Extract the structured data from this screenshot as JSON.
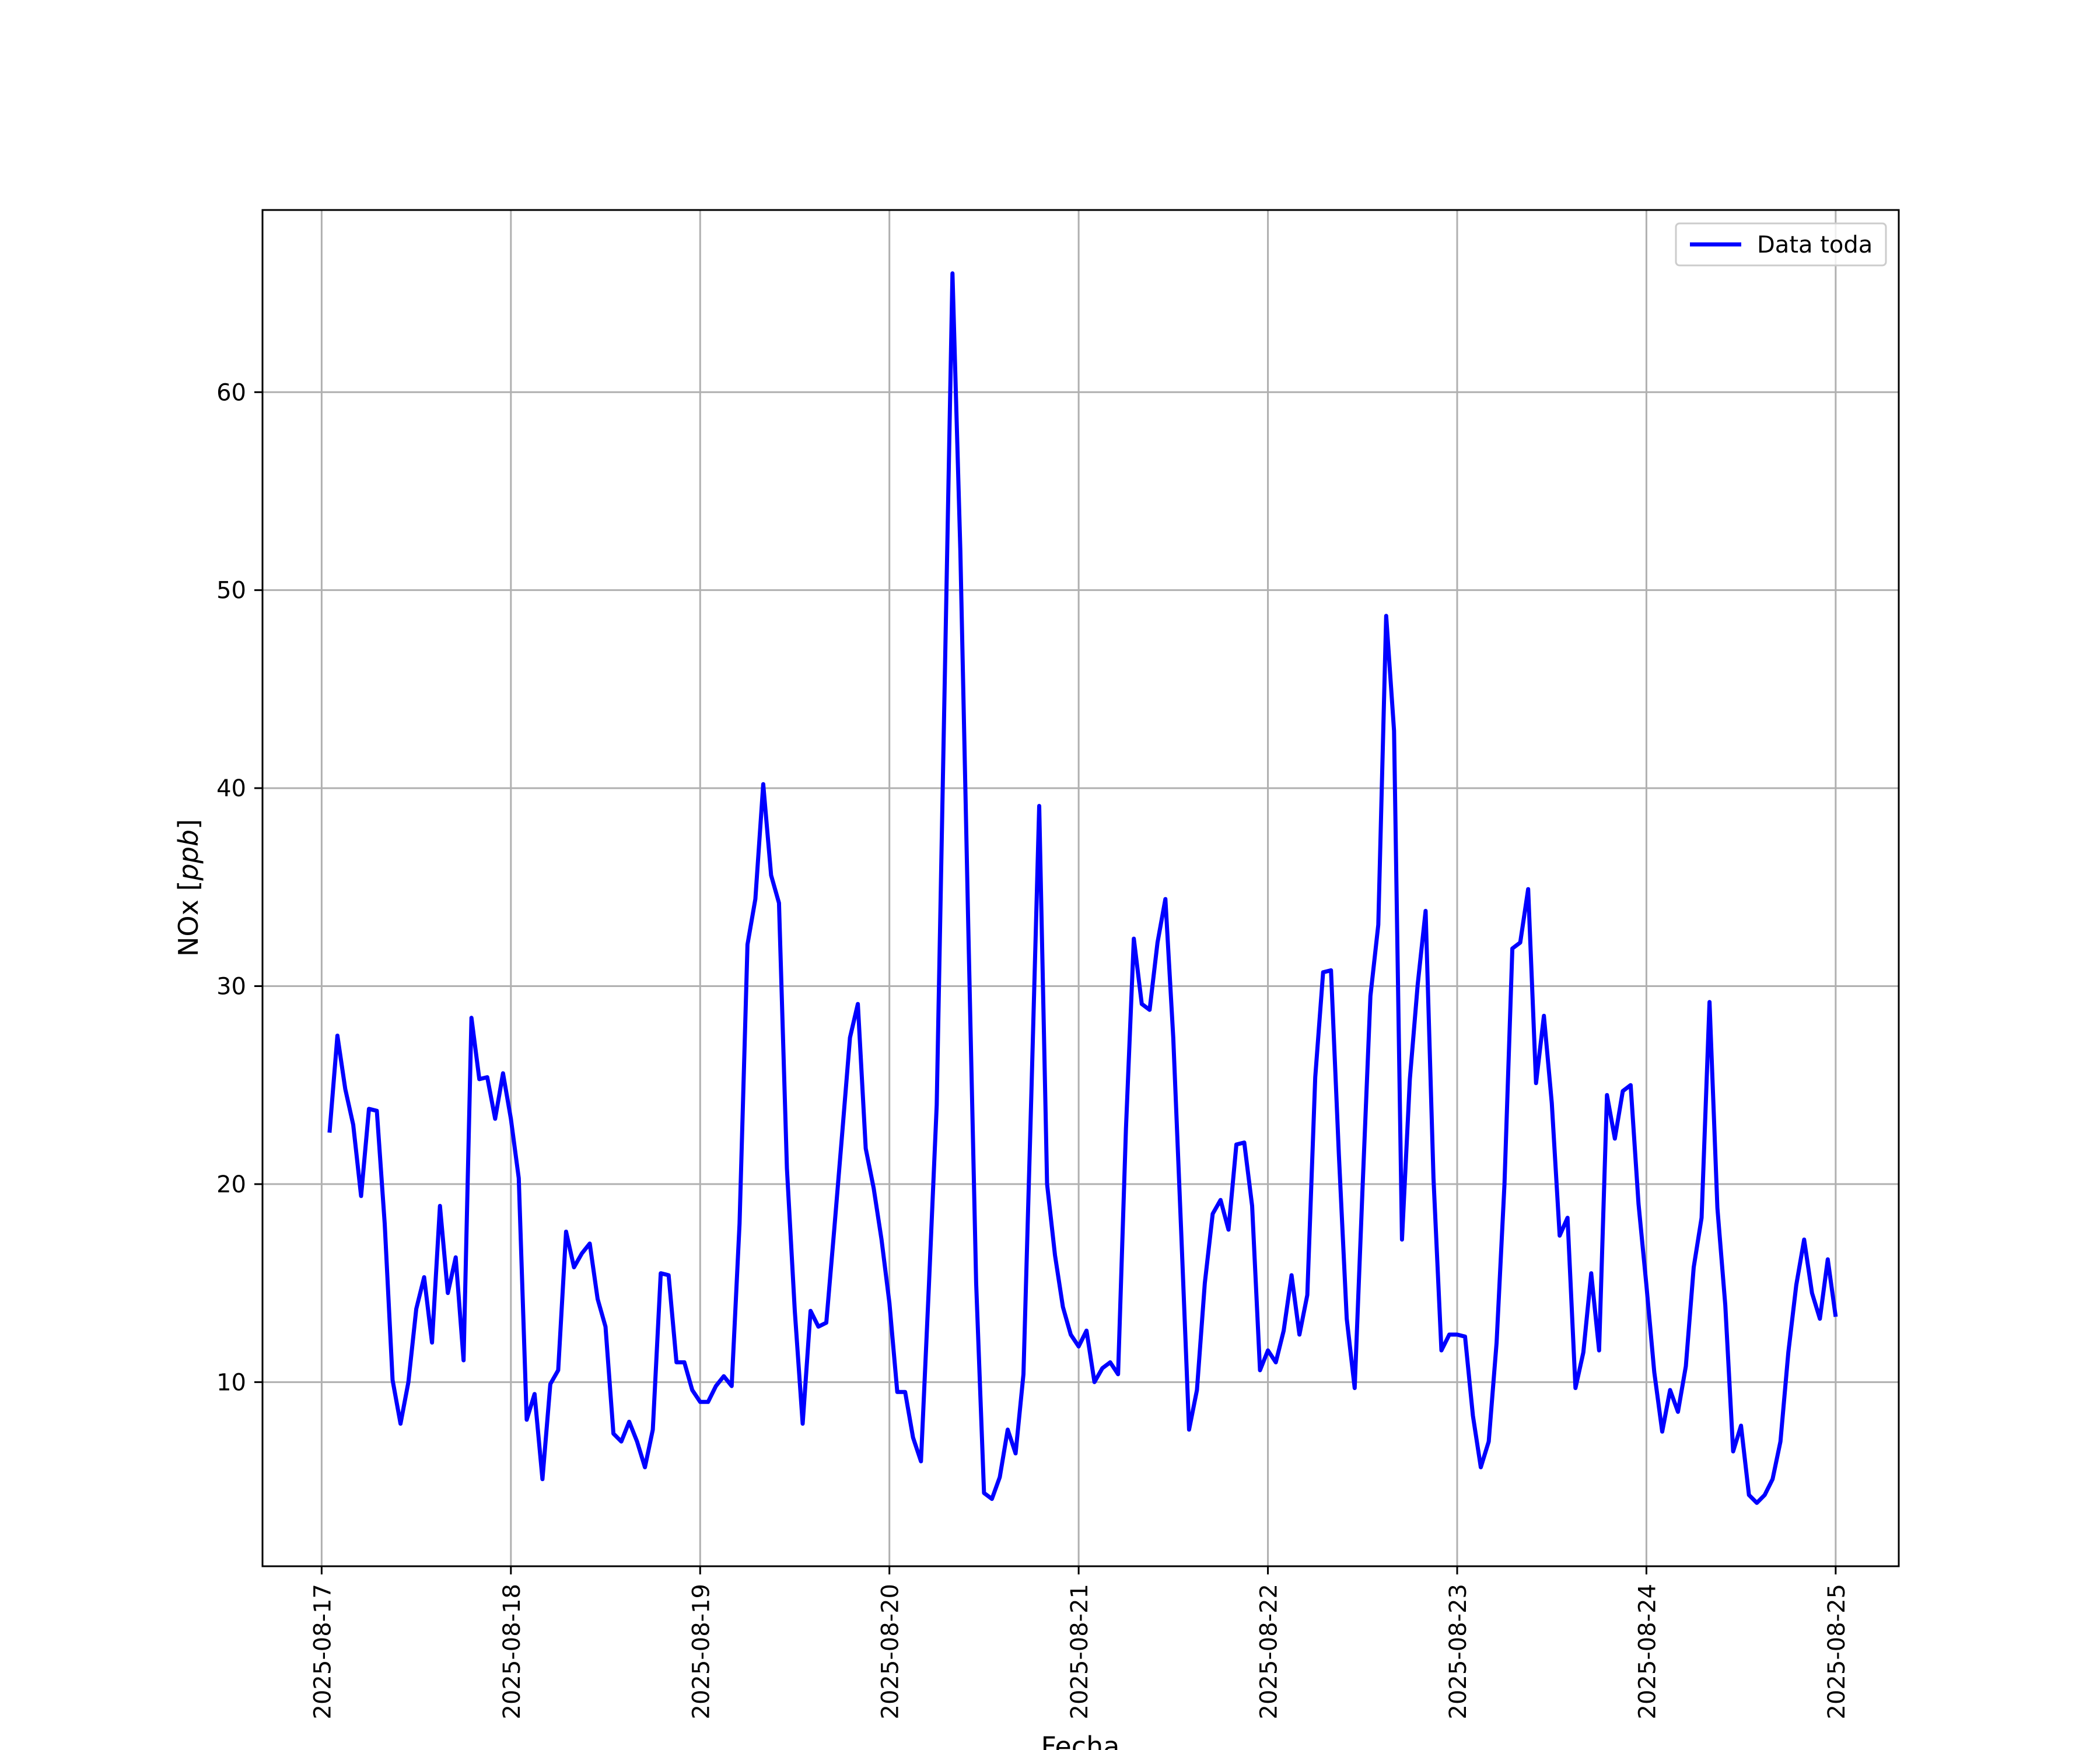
{
  "chart_data": {
    "type": "line",
    "title": "",
    "xlabel": "Fecha",
    "ylabel_main": "NOx [",
    "ylabel_unit": "ppb",
    "ylabel_close": "]",
    "xlim": [
      "2025-08-16 16:30",
      "2025-08-25 08:00"
    ],
    "ylim": [
      0.7,
      69.2
    ],
    "x_ticks": [
      "2025-08-17",
      "2025-08-18",
      "2025-08-19",
      "2025-08-20",
      "2025-08-21",
      "2025-08-22",
      "2025-08-23",
      "2025-08-24",
      "2025-08-25"
    ],
    "y_ticks": [
      10,
      20,
      30,
      40,
      50,
      60
    ],
    "grid": true,
    "legend_position": "top-right",
    "sampling_interval_hours": 1,
    "series": [
      {
        "name": "Data toda",
        "color": "#0000ff",
        "x_start": "2025-08-17 01:00",
        "x_end": "2025-08-25 00:00",
        "values": [
          22.6,
          27.5,
          24.8,
          23.0,
          19.4,
          23.8,
          23.7,
          18.0,
          10.1,
          7.9,
          10.0,
          13.7,
          15.3,
          12.0,
          18.9,
          14.5,
          16.3,
          11.1,
          28.4,
          25.3,
          25.4,
          23.3,
          25.6,
          23.3,
          20.3,
          8.1,
          9.4,
          5.1,
          9.9,
          10.6,
          17.6,
          15.8,
          16.5,
          17.0,
          14.2,
          12.8,
          7.4,
          7.0,
          8.0,
          7.0,
          5.7,
          7.6,
          15.5,
          15.4,
          11.0,
          11.0,
          9.6,
          9.0,
          9.0,
          9.8,
          10.3,
          9.8,
          18.0,
          32.1,
          34.4,
          40.2,
          35.6,
          34.2,
          20.8,
          13.6,
          7.9,
          13.6,
          12.8,
          13.0,
          17.7,
          22.5,
          27.4,
          29.1,
          21.8,
          19.8,
          17.2,
          14.0,
          9.5,
          9.5,
          7.2,
          6.0,
          14.8,
          24.0,
          45.0,
          66.0,
          52.0,
          33.0,
          15.0,
          4.4,
          4.1,
          5.2,
          7.6,
          6.4,
          10.4,
          24.5,
          39.1,
          20.0,
          16.4,
          13.8,
          12.4,
          11.8,
          12.6,
          10.0,
          10.7,
          11.0,
          10.4,
          22.8,
          32.4,
          29.1,
          28.8,
          32.2,
          34.4,
          27.4,
          17.6,
          7.6,
          9.6,
          15.0,
          18.5,
          19.2,
          17.7,
          22.0,
          22.1,
          18.9,
          10.6,
          11.6,
          11.0,
          12.6,
          15.4,
          12.4,
          14.4,
          25.4,
          30.7,
          30.8,
          21.5,
          13.2,
          9.7,
          19.8,
          29.5,
          33.1,
          48.7,
          42.9,
          17.2,
          25.3,
          30.1,
          33.8,
          20.3,
          11.6,
          12.4,
          12.4,
          12.3,
          8.3,
          5.7,
          7.0,
          12.0,
          20.0,
          31.9,
          32.2,
          34.9,
          25.1,
          28.5,
          24.1,
          17.4,
          18.3,
          9.7,
          11.5,
          15.5,
          11.6,
          24.5,
          22.3,
          24.7,
          25.0,
          19.0,
          14.9,
          10.5,
          7.5,
          9.6,
          8.5,
          10.8,
          15.8,
          18.3,
          29.2,
          18.8,
          13.9,
          6.5,
          7.8,
          4.3,
          3.9,
          4.3,
          5.1,
          7.0,
          11.5,
          14.9,
          17.2,
          14.5,
          13.2,
          16.2,
          13.3
        ]
      }
    ]
  }
}
